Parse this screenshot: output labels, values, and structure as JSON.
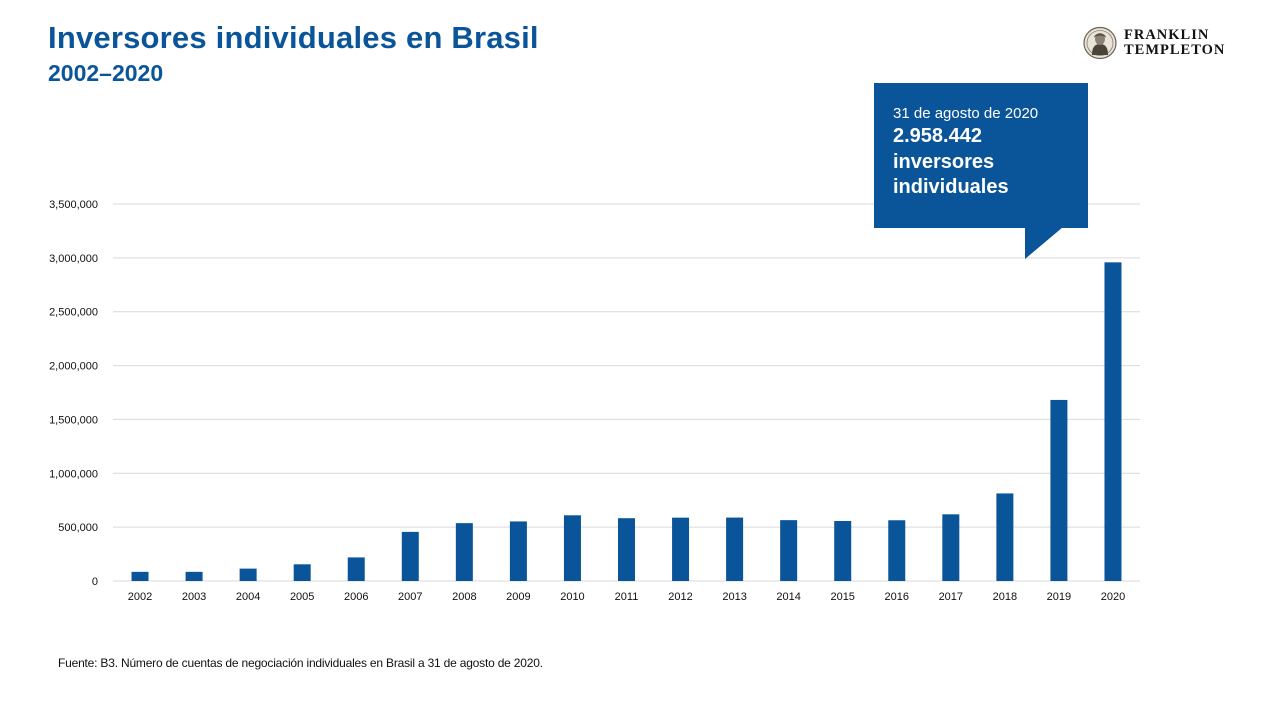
{
  "header": {
    "title": "Inversores individuales en Brasil",
    "subtitle": "2002–2020"
  },
  "logo": {
    "line1": "FRANKLIN",
    "line2": "TEMPLETON",
    "icon": "franklin-portrait-seal-icon"
  },
  "callout": {
    "date": "31 de agosto de 2020",
    "value": "2.958.442",
    "line1": "inversores",
    "line2": "individuales"
  },
  "footer": {
    "source": "Fuente: B3. Número de cuentas de negociación individuales en Brasil a 31 de agosto de 2020."
  },
  "colors": {
    "accent": "#0a5599",
    "bar": "#0a5599",
    "grid": "#d9d9d9"
  },
  "chart_data": {
    "type": "bar",
    "categories": [
      "2002",
      "2003",
      "2004",
      "2005",
      "2006",
      "2007",
      "2008",
      "2009",
      "2010",
      "2011",
      "2012",
      "2013",
      "2014",
      "2015",
      "2016",
      "2017",
      "2018",
      "2019",
      "2020"
    ],
    "values": [
      85000,
      85000,
      115000,
      155000,
      219000,
      456000,
      537000,
      553000,
      610000,
      583000,
      588000,
      589000,
      565000,
      557000,
      564000,
      619000,
      813000,
      1681000,
      2958442
    ],
    "ylim": [
      0,
      3500000
    ],
    "yticks": [
      0,
      500000,
      1000000,
      1500000,
      2000000,
      2500000,
      3000000,
      3500000
    ],
    "ytick_labels": [
      "0",
      "500,000",
      "1,000,000",
      "1,500,000",
      "2,000,000",
      "2,500,000",
      "3,000,000",
      "3,500,000"
    ],
    "grid": true,
    "legend": "none"
  }
}
